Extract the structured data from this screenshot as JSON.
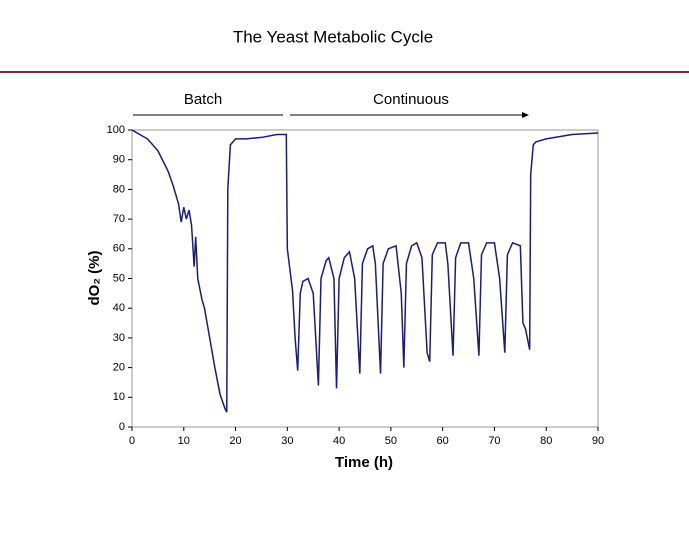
{
  "chart_data": {
    "type": "line",
    "title": "The Yeast Metabolic Cycle",
    "annotations": [
      "Batch",
      "Continuous"
    ],
    "x_label": "Time (h)",
    "y_label": "dO₂ (%)",
    "xlim": [
      0,
      90
    ],
    "xticks": [
      0,
      10,
      20,
      30,
      40,
      50,
      60,
      70,
      80,
      90
    ],
    "ylim": [
      0,
      100
    ],
    "yticks": [
      0,
      10,
      20,
      30,
      40,
      50,
      60,
      70,
      80,
      90,
      100
    ],
    "series": [
      {
        "color": "#1c1c7a",
        "x": [
          0,
          1,
          3,
          5,
          7,
          8,
          9,
          9.5,
          10,
          10.5,
          11,
          11.5,
          12,
          12.3,
          12.7,
          13.5,
          14,
          15,
          16,
          17,
          18,
          18.3,
          18.5,
          19,
          20,
          22,
          25,
          28,
          29.8,
          30,
          30.5,
          31,
          31.5,
          32,
          32.5,
          33,
          34,
          35,
          36,
          36.5,
          37.5,
          38,
          39,
          39.5,
          40,
          41,
          42,
          43,
          44,
          44.5,
          45.5,
          46.5,
          47,
          48,
          48.5,
          49.5,
          51,
          52,
          52.5,
          53,
          54,
          55,
          56,
          57,
          57.5,
          58,
          59,
          60.5,
          61,
          62,
          62.5,
          63.5,
          65,
          66,
          67,
          67.5,
          68.5,
          70,
          71,
          72,
          72.5,
          73.5,
          75,
          75.5,
          76,
          76.8,
          77,
          77.5,
          78,
          80,
          85,
          90
        ],
        "values": [
          100,
          99,
          97,
          93,
          86,
          81,
          75,
          69,
          74,
          70,
          73,
          68,
          54,
          64,
          50,
          43,
          40,
          30,
          20,
          11,
          6,
          5,
          80,
          95,
          97,
          97,
          97.5,
          98.5,
          98.5,
          60,
          53,
          46,
          30,
          19,
          45,
          49,
          50,
          45,
          14,
          50,
          56,
          57,
          50,
          13,
          50,
          57,
          59,
          50,
          18,
          55,
          60,
          61,
          55,
          18,
          55,
          60,
          61,
          45,
          20,
          55,
          61,
          62,
          57,
          25,
          22,
          58,
          62,
          62,
          55,
          24,
          57,
          62,
          62,
          50,
          24,
          58,
          62,
          62,
          50,
          25,
          58,
          62,
          61,
          35,
          33,
          26,
          85,
          95,
          96,
          97,
          98.5,
          99
        ]
      }
    ]
  }
}
